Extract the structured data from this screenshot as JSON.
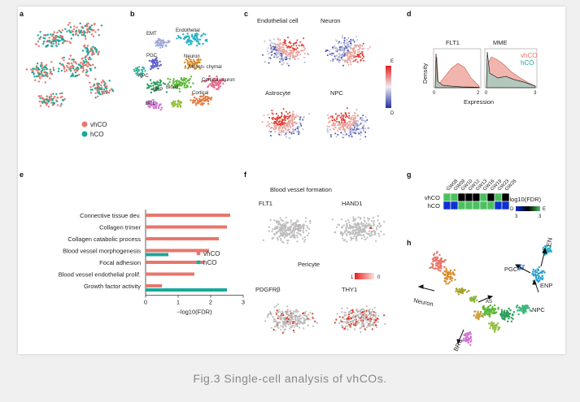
{
  "caption": "Fig.3 Single-cell analysis of vhCOs.",
  "panels": {
    "a": {
      "letter": "a",
      "legend": [
        {
          "label": "vhCO",
          "color": "#e8766b"
        },
        {
          "label": "hCO",
          "color": "#1aa89a"
        }
      ]
    },
    "b": {
      "letter": "b",
      "cluster_labels": [
        "EMT",
        "Endothelial",
        "PGC",
        "Neuron",
        "Mesen- chymal",
        "Cortical neuron",
        "BRC",
        "Cortical",
        "NPC",
        "Blood",
        "ENP"
      ]
    },
    "c": {
      "letter": "c",
      "titles": [
        "Endothelial cell",
        "Neuron",
        "Astrocyte",
        "NPC"
      ],
      "scale_top": "E",
      "scale_bottom": "D"
    },
    "d": {
      "letter": "d",
      "ylabel": "Density",
      "xlabel": "Expression",
      "genes": [
        "FLT1",
        "MME"
      ],
      "ticks": [
        "0",
        "2",
        "0",
        "3"
      ],
      "legend": [
        {
          "label": "vhCO",
          "color": "#e8766b"
        },
        {
          "label": "hCO",
          "color": "#1aa89a"
        }
      ]
    },
    "e": {
      "letter": "e",
      "xlabel": "−log10(FDR)",
      "xticks": [
        "0",
        "1",
        "2",
        "3"
      ],
      "legend": [
        {
          "label": "vhCO",
          "color": "#e8766b"
        },
        {
          "label": "hCO",
          "color": "#1aa89a"
        }
      ]
    },
    "f": {
      "letter": "f",
      "title": "Blood vessel formation",
      "titles": [
        "FLT1",
        "HAND1",
        "PDGFRβ",
        "THY1"
      ],
      "subtitle": "Pericyte",
      "scale_left": "1",
      "scale_right": "0"
    },
    "g": {
      "letter": "g",
      "columns": [
        "GW08",
        "GW09",
        "GW10",
        "GW12",
        "GW13",
        "GW16",
        "GW19",
        "GW23",
        "GW26"
      ],
      "rows": [
        "vhCO",
        "hCO"
      ],
      "values": [
        [
          "E",
          "E",
          "D",
          "D",
          "D",
          "E",
          "D",
          "E",
          "D"
        ],
        [
          "D",
          "D",
          "E",
          "E",
          "E",
          "E",
          "E",
          "D",
          "D"
        ]
      ],
      "scale_label": "−log10(FDR)",
      "scale_left": "D",
      "scale_right": "E",
      "scale_min": "3",
      "scale_max": "3"
    },
    "h": {
      "letter": "h",
      "labels": [
        "EN",
        "ENP",
        "PGC",
        "NPC",
        "Neuron",
        "AS",
        "BRC"
      ]
    }
  },
  "chart_data": {
    "type": "bar",
    "title": "",
    "xlabel": "−log10(FDR)",
    "ylabel": "",
    "xlim": [
      0,
      3
    ],
    "categories": [
      "Connective tissue dev.",
      "Collagen trimer",
      "Collagen catabolic process",
      "Blood vessel morphogenesis",
      "Focal adhesion",
      "Blood vessel endothelial prolif.",
      "Growth factor activity"
    ],
    "series": [
      {
        "name": "vhCO",
        "color": "#e8766b",
        "values": [
          2.6,
          2.5,
          2.25,
          1.95,
          1.8,
          1.5,
          0.5
        ]
      },
      {
        "name": "hCO",
        "color": "#1aa89a",
        "values": [
          0,
          0,
          0,
          0.7,
          0,
          0,
          2.5
        ]
      }
    ]
  }
}
